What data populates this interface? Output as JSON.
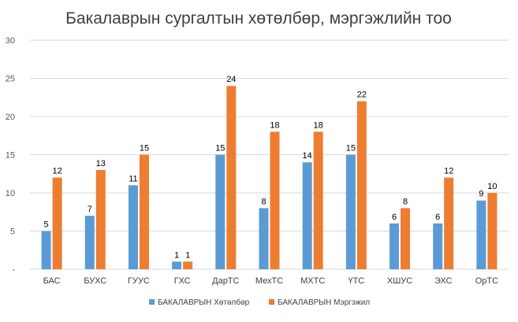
{
  "chart_data": {
    "type": "bar",
    "title": "Бакалаврын сургалтын хөтөлбөр, мэргэжлийн тоо",
    "categories": [
      "БАС",
      "БУХС",
      "ГУУС",
      "ГХС",
      "ДарТС",
      "МехТС",
      "МХТС",
      "ҮТС",
      "ХШУС",
      "ЭХС",
      "ОрТС"
    ],
    "series": [
      {
        "name": "БАКАЛАВРЫН Хөтөлбөр",
        "color": "#5B9BD5",
        "values": [
          5,
          7,
          11,
          1,
          15,
          8,
          14,
          15,
          6,
          6,
          9
        ]
      },
      {
        "name": "БАКАЛАВРЫН Мэргэжил",
        "color": "#ED7D31",
        "values": [
          12,
          13,
          15,
          1,
          24,
          18,
          18,
          22,
          8,
          12,
          10
        ]
      }
    ],
    "yticks": [
      "-",
      "5",
      "10",
      "15",
      "20",
      "25",
      "30"
    ],
    "ylim": [
      0,
      30
    ],
    "grid": true,
    "legend_position": "bottom",
    "data_labels": true
  }
}
